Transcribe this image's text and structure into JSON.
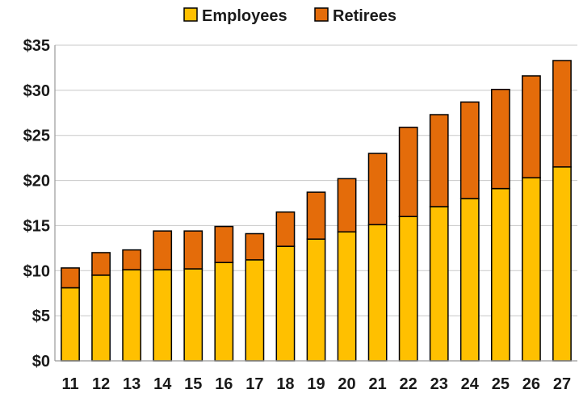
{
  "chart_data": {
    "type": "bar",
    "stacked": true,
    "title": "",
    "xlabel": "",
    "ylabel": "",
    "categories": [
      "11",
      "12",
      "13",
      "14",
      "15",
      "16",
      "17",
      "18",
      "19",
      "20",
      "21",
      "22",
      "23",
      "24",
      "25",
      "26",
      "27"
    ],
    "series": [
      {
        "name": "Employees",
        "color": "#FFC000",
        "values": [
          8.1,
          9.5,
          10.1,
          10.1,
          10.2,
          10.9,
          11.2,
          12.7,
          13.5,
          14.3,
          15.1,
          16.0,
          17.1,
          18.0,
          19.1,
          20.3,
          21.5
        ]
      },
      {
        "name": "Retirees",
        "color": "#E46C0A",
        "values": [
          2.2,
          2.5,
          2.2,
          4.3,
          4.2,
          4.0,
          2.9,
          3.8,
          5.2,
          5.9,
          7.9,
          9.9,
          10.2,
          10.7,
          11.0,
          11.3,
          11.8
        ]
      }
    ],
    "ylim": [
      0,
      35
    ],
    "yticks": [
      0,
      5,
      10,
      15,
      20,
      25,
      30,
      35
    ],
    "ytick_labels": [
      "$0",
      "$5",
      "$10",
      "$15",
      "$20",
      "$25",
      "$30",
      "$35"
    ],
    "grid": true,
    "legend": "top-center"
  }
}
